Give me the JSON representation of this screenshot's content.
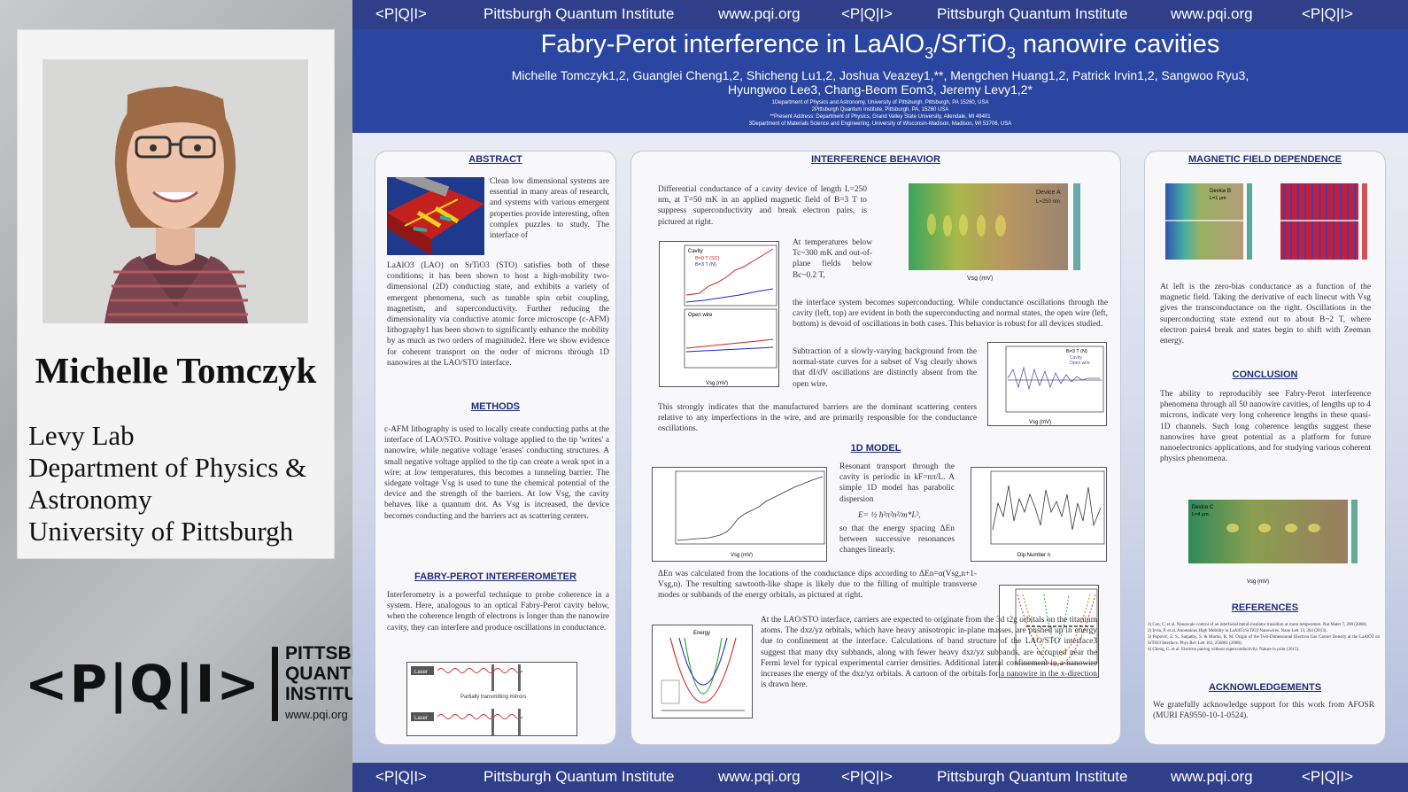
{
  "presenter": {
    "name": "Michelle Tomczyk",
    "affiliation_lines": [
      "Levy Lab",
      "Department of Physics &",
      "Astronomy",
      "University of Pittsburgh"
    ]
  },
  "logo": {
    "mark": "<P|Q|I>",
    "line1": "PITTSBURGH",
    "line2": "QUANTUM",
    "line3": "INSTITUTE",
    "url": "www.pqi.org"
  },
  "banner": {
    "items": [
      "<P|Q|I>",
      "Pittsburgh Quantum Institute",
      "www.pqi.org",
      "<P|Q|I>",
      "Pittsburgh Quantum Institute",
      "www.pqi.org",
      "<P|Q|I>"
    ]
  },
  "poster": {
    "title_main": "Fabry-Perot interference in LaAlO",
    "title_sub1": "3",
    "title_mid": "/SrTiO",
    "title_sub2": "3",
    "title_end": " nanowire cavities",
    "authors_line1": "Michelle Tomczyk1,2, Guanglei Cheng1,2, Shicheng Lu1,2, Joshua Veazey1,**, Mengchen Huang1,2, Patrick Irvin1,2, Sangwoo Ryu3,",
    "authors_line2": "Hyungwoo Lee3, Chang-Beom Eom3, Jeremy Levy1,2*",
    "affiliations": [
      "1Department of Physics and Astronomy, University of Pittsburgh, Pittsburgh, PA 15260, USA",
      "2Pittsburgh Quantum Institute, Pittsburgh, PA, 15260 USA",
      "**Present Address: Department of Physics, Grand Valley State University, Allendale, MI 49401",
      "3Department of Materials Science and Engineering, University of Wisconsin-Madison, Madison, WI 53706, USA"
    ]
  },
  "sections": {
    "abstract": {
      "heading": "ABSTRACT",
      "text_side": "Clean low dimensional systems are essential in many areas of research, and systems with various emergent properties provide interesting, often complex puzzles to study. The interface of",
      "text_full": "LaAlO3 (LAO) on SrTiO3 (STO) satisfies both of these conditions; it has been shown to host a high-mobility two-dimensional (2D) conducting state, and exhibits a variety of emergent phenomena, such as tunable spin orbit coupling, magnetism, and superconductivity. Further reducing the dimensionality via conductive atomic force microscope (c-AFM) lithography1 has been shown to significantly enhance the mobility by as much as two orders of magnitude2. Here we show evidence for coherent transport on the order of microns through 1D nanowires at the LAO/STO interface."
    },
    "methods": {
      "heading": "METHODS",
      "text": "c-AFM lithography is used to locally create conducting paths at the interface of LAO/STO. Positive voltage applied to the tip 'writes' a nanowire, while negative voltage 'erases' conducting structures. A small negative voltage applied to the tip can create a weak spot in a wire; at low temperatures, this becomes a tunneling barrier. The sidegate voltage Vsg is used to tune the chemical potential of the device and the strength of the barriers. At low Vsg, the cavity behaves like a quantum dot. As Vsg is increased, the device becomes conducting and the barriers act as scattering centers."
    },
    "fabry": {
      "heading": "FABRY-PEROT INTERFEROMETER",
      "text": "Interferometry is a powerful technique to probe coherence in a system. Here, analogous to an optical Fabry-Perot cavity below, when the coherence length of electrons is longer than the nanowire cavity, they can interfere and produce oscillations in conductance.",
      "fig_label_top": "Laser",
      "fig_label_bottom": "Laser",
      "fig_caption": "Partially transmitting mirrors"
    },
    "interference": {
      "heading": "INTERFERENCE BEHAVIOR",
      "text1": "Differential conductance of a cavity device of length L=250 nm, at T=50 mK in an applied magnetic field of B=3 T to suppress superconductivity and break electron pairs, is pictured at right.",
      "text2": "At temperatures below Tc~300 mK and out-of-plane fields below Bc~0.2 T,",
      "text3": "the interface system becomes superconducting. While conductance oscillations through the cavity (left, top) are evident in both the superconducting and normal states, the open wire (left, bottom) is devoid of oscillations in both cases. This behavior is robust for all devices studied.",
      "text4": "Subtraction of a slowly-varying background from the normal-state curves for a subset of Vsg clearly shows that dI/dV oscillations are distinctly absent from the open wire.",
      "text5": "This strongly indicates that the manufactured barriers are the dominant scattering centers relative to any imperfections in the wire, and are primarily responsible for the conductance oscillations.",
      "map_label": "Device A",
      "map_sublabel": "L=250 nm",
      "cavity_label": "Cavity",
      "open_label": "Open wire",
      "legend_sc": "B=0 T (SC)",
      "legend_n": "B=3 T (N)",
      "sub_legend_title": "B=3 T (N)",
      "sub_legend_cavity": "Cavity",
      "sub_legend_open": "Open wire",
      "xlabel_vsg": "Vsg (mV)"
    },
    "model": {
      "heading": "1D MODEL",
      "text1": "Resonant transport through the cavity is periodic in kF=nπ/L. A simple 1D model has parabolic dispersion",
      "equation": "E= ½ ħ²π²n²/m*L²,",
      "text2": "so that the energy spacing ΔEn between successive resonances changes linearly.",
      "text3": "ΔEn was calculated from the locations of the conductance dips according to ΔEn=α(Vsg,n+1-Vsg,n). The resulting sawtooth-like shape is likely due to the filling of multiple transverse modes or subbands of the energy orbitals, as pictured at right.",
      "text4": "At the LAO/STO interface, carriers are expected to originate from the 3d t2g orbitals on the titanium atoms. The dxz/yz orbitals, which have heavy anisotropic in-plane masses, are pushed up in energy due to confinement at the interface. Calculations of band structure of the LAO/STO interface3 suggest that many dxy subbands, along with fewer heavy dxz/yz subbands, are occupied near the Fermi level for typical experimental carrier densities. Additional lateral confinement in a nanowire increases the energy of the dxz/yz orbitals. A cartoon of the orbitals for a nanowire in the x-direction is drawn here.",
      "xlabel_dip": "Dip Number n",
      "energy_label": "Energy"
    },
    "magnetic": {
      "heading": "MAGNETIC FIELD DEPENDENCE",
      "text": "At left is the zero-bias conductance as a function of the magnetic field. Taking the derivative of each linecut with Vsg gives the transconductance on the right. Oscillations in the superconducting state extend out to about B~2 T, where electron pairs4 break and states begin to shift with Zeeman energy.",
      "map_label": "Device B",
      "map_sublabel": "L=1 μm"
    },
    "conclusion": {
      "heading": "CONCLUSION",
      "text": "The ability to reproducibly see Fabry-Perot interference phenomena through all 50 nanowire cavities, of lengths up to 4 microns, indicate very long coherence lengths in these quasi-1D channels. Such long coherence lengths suggest these nanowires have great potential as a platform for future nanoelectronics applications, and for studying various coherent physics phenomena.",
      "map_label": "Device C",
      "map_sublabel": "L=4 μm"
    },
    "references": {
      "heading": "REFERENCES",
      "items": [
        "1) Cen, C. et al. Nanoscale control of an interfacial metal-insulator transition at room temperature. Nat Mater 7, 298 (2008).",
        "2) Irvin, P. et al. Anomalous High Mobility in LaAlO3/SrTiO3 Nanowires. Nano Lett 13, 364 (2013).",
        "3) Popović, Z. S., Satpathy, S. & Martin, R. M. Origin of the Two-Dimensional Electron Gas Carrier Density at the LaAlO3 on SrTiO3 Interface. Phys Rev Lett 101, 256801 (2008).",
        "4) Cheng, G. et al. Electron pairing without superconductivity. Nature in print (2015)."
      ]
    },
    "acknowledgements": {
      "heading": "ACKNOWLEDGEMENTS",
      "text": "We gratefully acknowledge support for this work from AFOSR (MURI FA9550-10-1-0524)."
    }
  },
  "colors": {
    "banner": "#2f3f8a",
    "header": "#2a46a0",
    "heading": "#1e2d7a"
  }
}
